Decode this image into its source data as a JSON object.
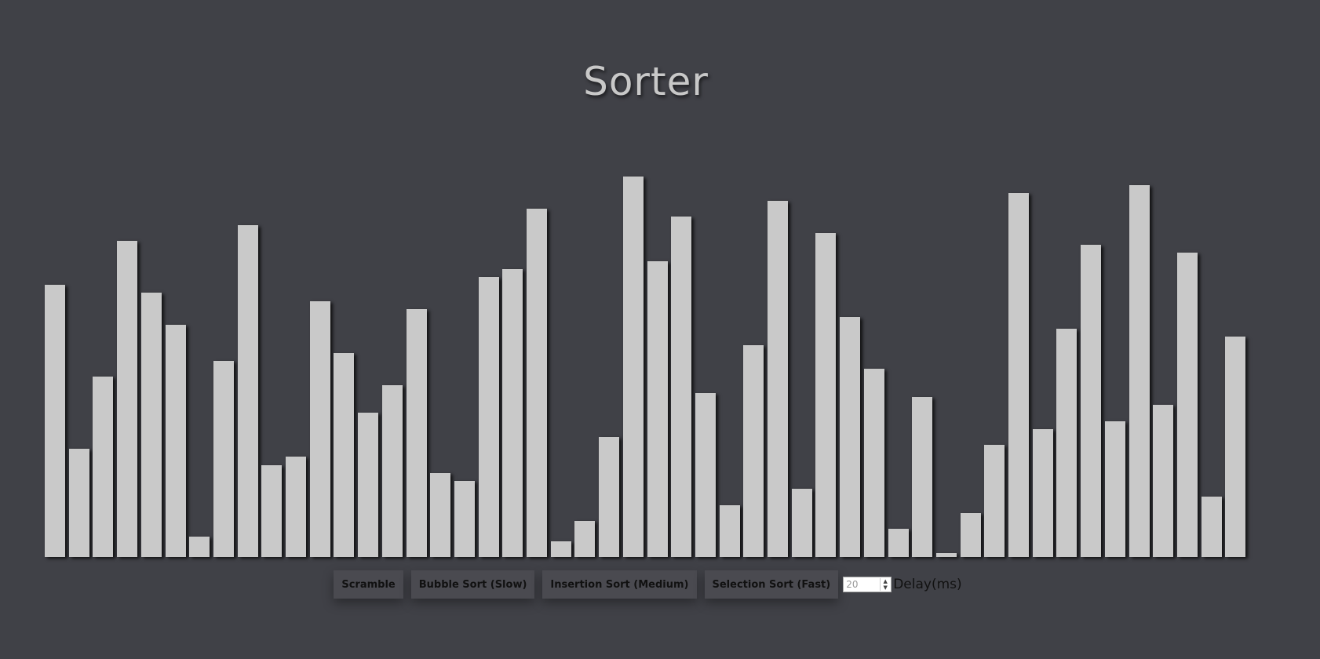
{
  "app": {
    "title": "Sorter"
  },
  "chart_data": {
    "type": "bar",
    "values": [
      68,
      27,
      45,
      79,
      66,
      58,
      5,
      49,
      83,
      23,
      25,
      64,
      51,
      36,
      43,
      62,
      21,
      19,
      70,
      72,
      87,
      4,
      9,
      30,
      95,
      74,
      85,
      41,
      13,
      53,
      89,
      17,
      81,
      60,
      47,
      7,
      40,
      1,
      11,
      28,
      91,
      32,
      57,
      78,
      34,
      93,
      38,
      76,
      15,
      55
    ],
    "ylim": [
      0,
      100
    ]
  },
  "controls": {
    "scramble_label": "Scramble",
    "bubble_label": "Bubble Sort (Slow)",
    "insertion_label": "Insertion Sort (Medium)",
    "selection_label": "Selection Sort (Fast)",
    "delay_value": "20",
    "delay_label": "Delay(ms)"
  }
}
